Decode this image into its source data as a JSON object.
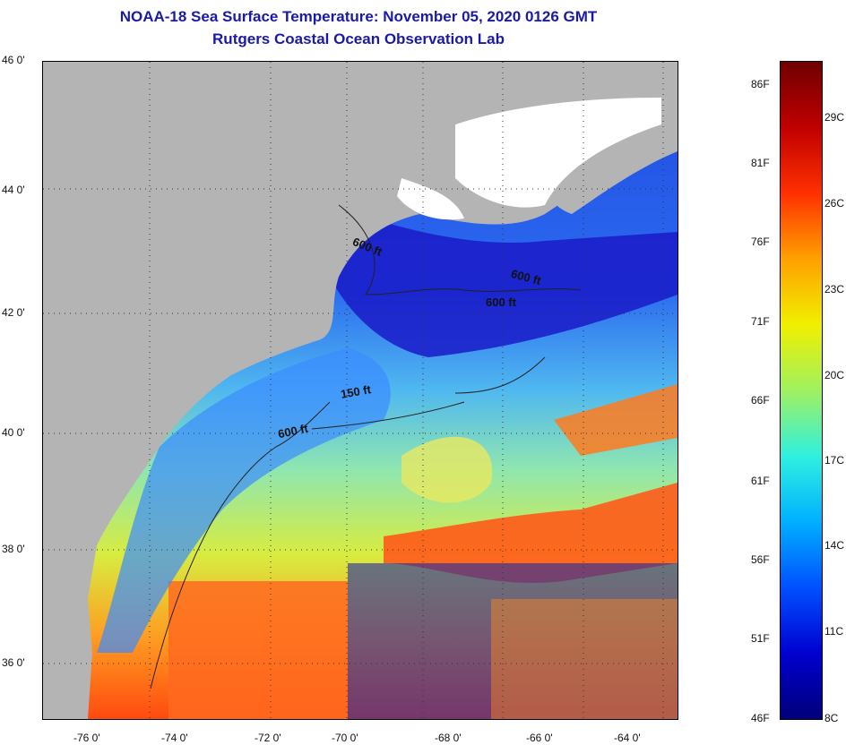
{
  "title": {
    "line1": "NOAA-18 Sea Surface Temperature:  November 05, 2020 0126 GMT",
    "line2": "Rutgers Coastal Ocean Observation Lab"
  },
  "map": {
    "lat_labels": [
      "46 0'",
      "44 0'",
      "42 0'",
      "40 0'",
      "38 0'",
      "36 0'"
    ],
    "lon_labels": [
      "-76 0'",
      "-74 0'",
      "-72 0'",
      "-70 0'",
      "-68 0'",
      "-66 0'",
      "-64 0'"
    ],
    "depth_contours": [
      "600 ft",
      "600 ft",
      "600 ft",
      "150 ft",
      "600 ft"
    ],
    "colors": {
      "land": "#b4b4b4",
      "cloud": "#ffffff",
      "cold": "#1a3fd6",
      "cool": "#4aa0ff",
      "mid": "#6fe0e0",
      "warm": "#c8e84a",
      "hot": "#ff5a1a"
    }
  },
  "colorbar": {
    "fahrenheit_labels": [
      "86F",
      "81F",
      "76F",
      "71F",
      "66F",
      "61F",
      "56F",
      "51F",
      "46F"
    ],
    "celsius_labels": [
      "29C",
      "26C",
      "23C",
      "20C",
      "17C",
      "14C",
      "11C",
      "8C"
    ],
    "gradient": [
      "#00007a",
      "#0000d0",
      "#0050ff",
      "#00b0ff",
      "#30f0e0",
      "#a0f060",
      "#f0f000",
      "#ffa000",
      "#ff3000",
      "#c00000",
      "#700000"
    ]
  }
}
